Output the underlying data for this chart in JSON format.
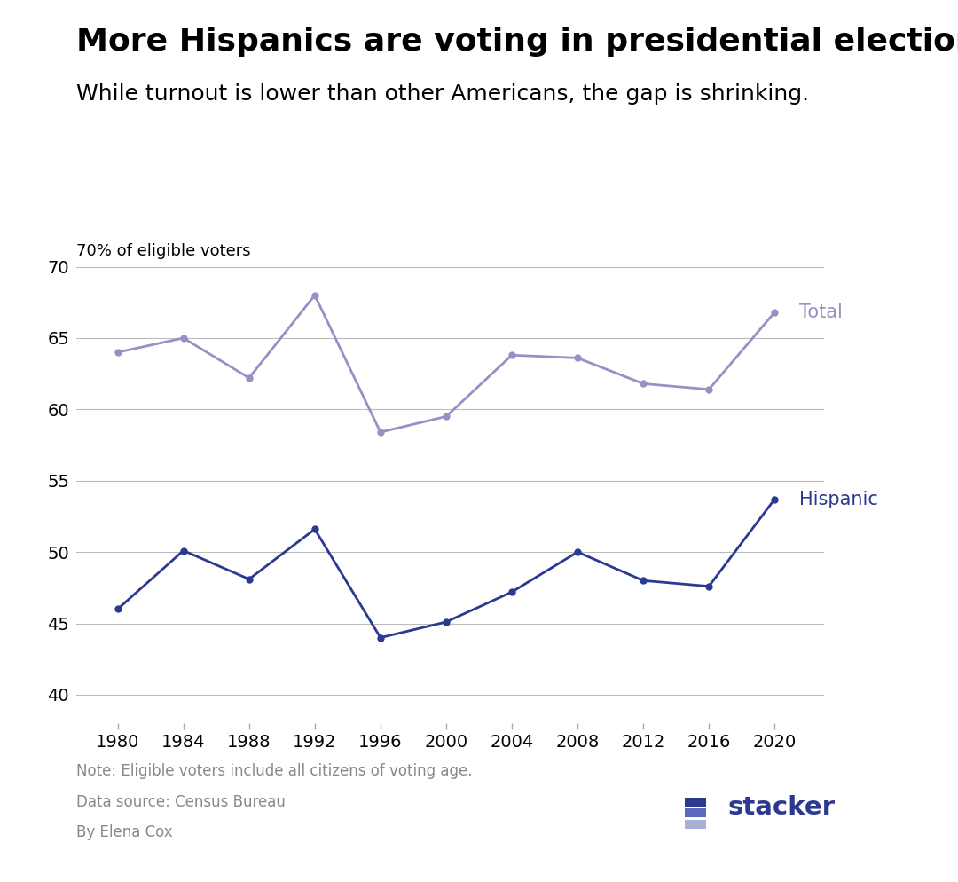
{
  "title": "More Hispanics are voting in presidential elections",
  "subtitle": "While turnout is lower than other Americans, the gap is shrinking.",
  "ylabel": "70% of eligible voters",
  "note": "Note: Eligible voters include all citizens of voting age.",
  "source": "Data source: Census Bureau",
  "author": "By Elena Cox",
  "years": [
    1980,
    1984,
    1988,
    1992,
    1996,
    2000,
    2004,
    2008,
    2012,
    2016,
    2020
  ],
  "total": [
    64.0,
    65.0,
    62.2,
    68.0,
    58.4,
    59.5,
    63.8,
    63.6,
    61.8,
    61.4,
    66.8
  ],
  "hispanic": [
    46.0,
    50.1,
    48.1,
    51.6,
    44.0,
    45.1,
    47.2,
    50.0,
    48.0,
    47.6,
    53.7
  ],
  "total_color": "#9b8ec4",
  "hispanic_color": "#2b3990",
  "grid_color": "#bbbbbb",
  "background_color": "#ffffff",
  "ylim": [
    38,
    72
  ],
  "yticks": [
    40,
    45,
    50,
    55,
    60,
    65,
    70
  ],
  "title_fontsize": 26,
  "subtitle_fontsize": 18,
  "ylabel_fontsize": 13,
  "tick_fontsize": 14,
  "label_fontsize": 15,
  "note_fontsize": 12,
  "total_label": "Total",
  "hispanic_label": "Hispanic",
  "stacker_text": "stacker",
  "stacker_color": "#2b3990",
  "stacker_icon_colors": [
    "#2b3990",
    "#5a6bbf",
    "#a8b0d8"
  ]
}
